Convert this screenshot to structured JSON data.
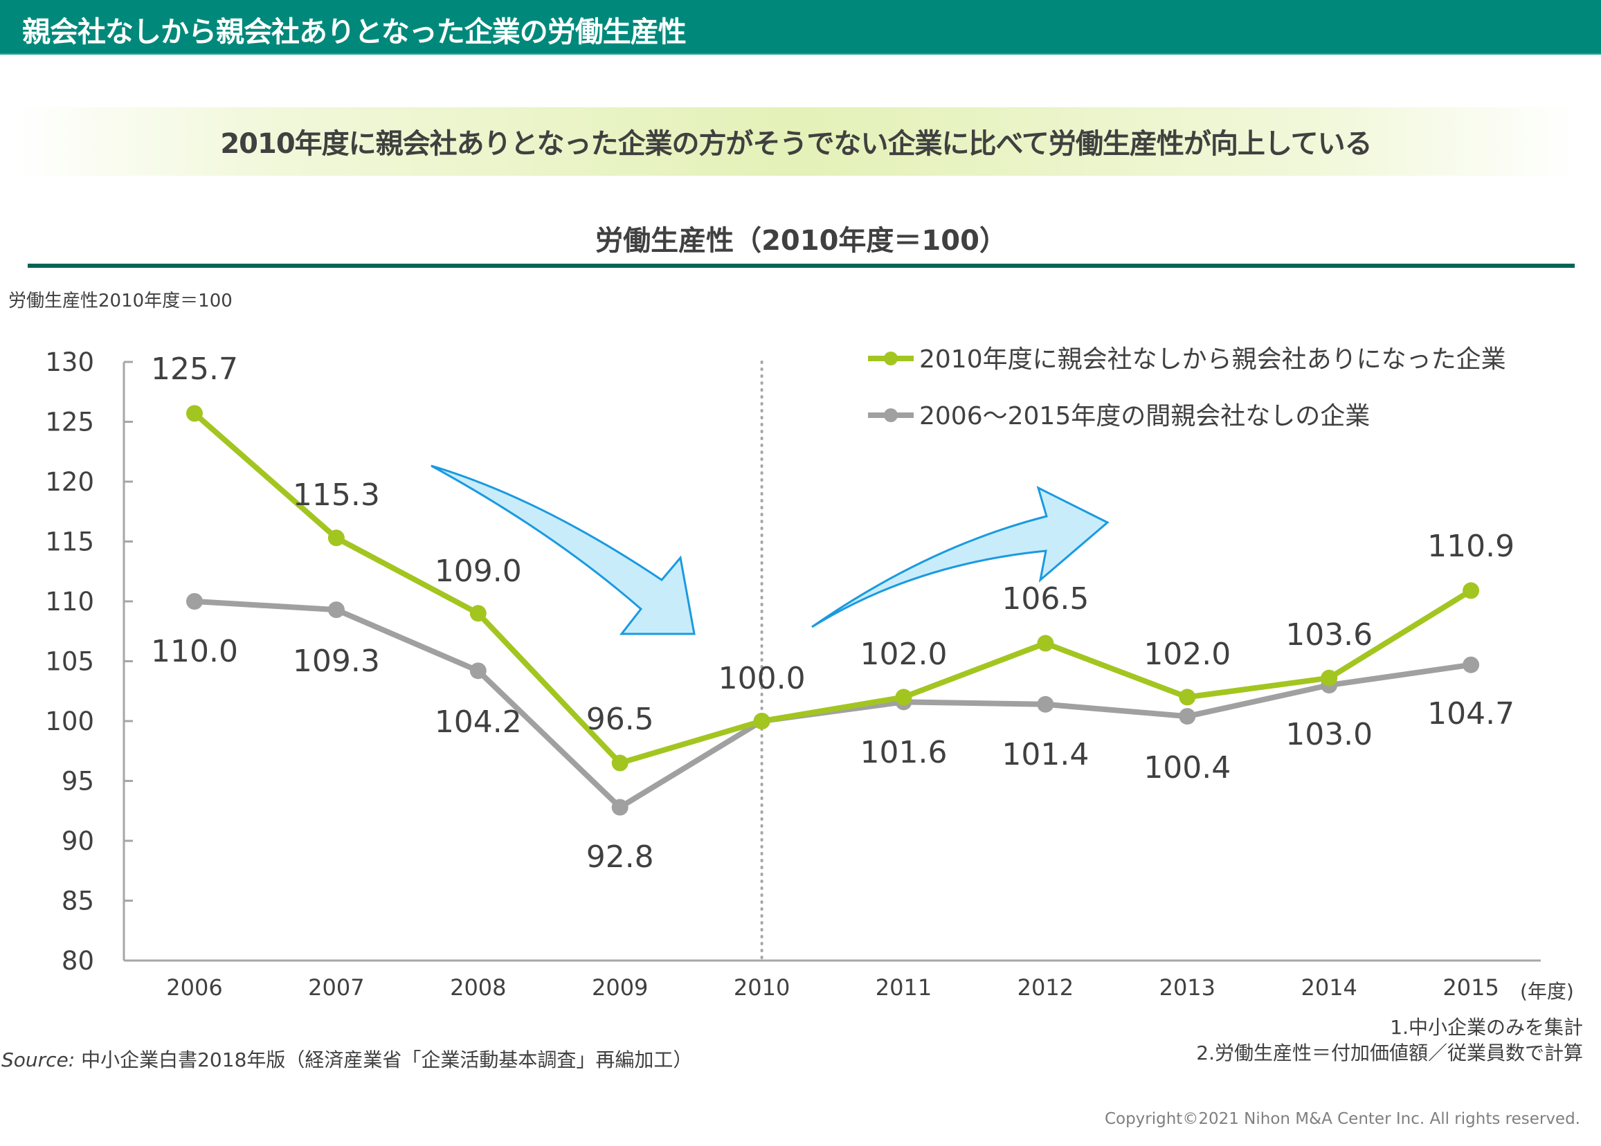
{
  "header": {
    "title": "親会社なしから親会社ありとなった企業の労働生産性"
  },
  "subtitle": "2010年度に親会社ありとなった企業の方がそうでない企業に比べて労働生産性が向上している",
  "colors": {
    "header_bg": "#00897b",
    "rule": "#006557",
    "series_green": "#a3c520",
    "series_gray": "#a0a0a0",
    "arrow_fill": "#c9ecfb",
    "arrow_stroke": "#1a9ae0"
  },
  "chart_data": {
    "type": "line",
    "title": "労働生産性（2010年度＝100）",
    "ylabel": "労働生産性2010年度＝100",
    "xlabel": "(年度)",
    "categories": [
      "2006",
      "2007",
      "2008",
      "2009",
      "2010",
      "2011",
      "2012",
      "2013",
      "2014",
      "2015"
    ],
    "ylim": [
      80,
      130
    ],
    "yticks": [
      80,
      85,
      90,
      95,
      100,
      105,
      110,
      115,
      120,
      125,
      130
    ],
    "grid": false,
    "reference_line": {
      "x": "2010",
      "style": "dotted"
    },
    "legend_position": "top-right",
    "series": [
      {
        "name": "2010年度に親会社なしから親会社ありになった企業",
        "color": "#a3c520",
        "values": [
          125.7,
          115.3,
          109.0,
          96.5,
          100.0,
          102.0,
          106.5,
          102.0,
          103.6,
          110.9
        ],
        "labels": [
          "125.7",
          "115.3",
          "109.0",
          "96.5",
          "100.0",
          "102.0",
          "106.5",
          "102.0",
          "103.6",
          "110.9"
        ]
      },
      {
        "name": "2006～2015年度の間親会社なしの企業",
        "color": "#a0a0a0",
        "values": [
          110.0,
          109.3,
          104.2,
          92.8,
          100.0,
          101.6,
          101.4,
          100.4,
          103.0,
          104.7
        ],
        "labels": [
          "110.0",
          "109.3",
          "104.2",
          "92.8",
          "",
          "101.6",
          "101.4",
          "100.4",
          "103.0",
          "104.7"
        ]
      }
    ],
    "annotations": [
      {
        "type": "arrow",
        "direction": "down-right",
        "span": [
          "2008",
          "2010"
        ],
        "meaning": "decline"
      },
      {
        "type": "arrow",
        "direction": "up-right",
        "span": [
          "2010",
          "2012"
        ],
        "meaning": "increase"
      }
    ]
  },
  "footer": {
    "source_prefix": "Source:",
    "source_text": " 中小企業白書2018年版（経済産業省「企業活動基本調査」再編加工）",
    "note_1": "1.中小企業のみを集計",
    "note_2": "2.労働生産性＝付加価値額／従業員数で計算",
    "copyright": "Copyright©2021 Nihon M&A Center Inc. All rights reserved."
  }
}
